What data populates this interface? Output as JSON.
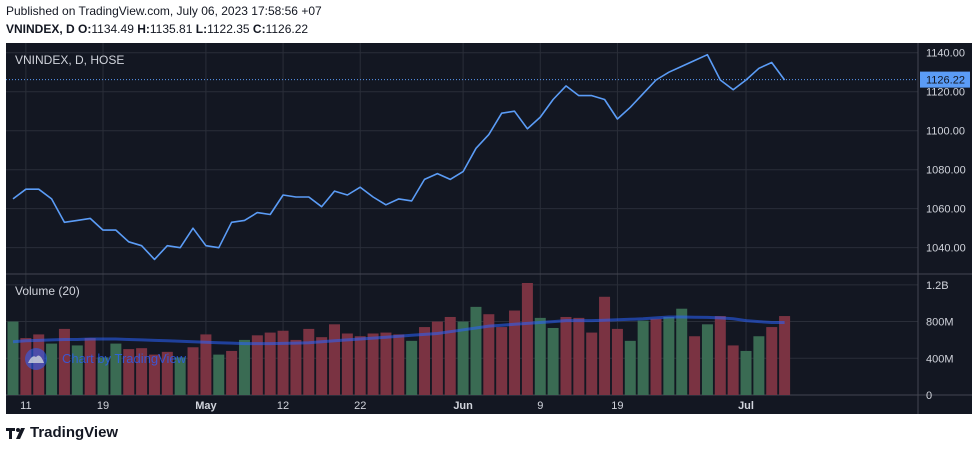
{
  "published": "Published on TradingView.com, July 06, 2023 17:58:56 +07",
  "ohlc": {
    "symbol_line": "VNINDEX, D",
    "o_label": "O:",
    "o": "1134.49",
    "h_label": "H:",
    "h": "1135.81",
    "l_label": "L:",
    "l": "1122.35",
    "c_label": "C:",
    "c": "1126.22"
  },
  "watermark": "Chart by TradingView",
  "footer_brand": "TradingView",
  "colors": {
    "background": "#131722",
    "grid": "#2a2e39",
    "line": "#5b9cf6",
    "volume_up": "#3a6b53",
    "volume_down": "#7a3342",
    "volume_ma": "#2962ff",
    "last_price_bg": "#5b9cf6"
  },
  "chart_data": [
    {
      "type": "line",
      "title": "VNINDEX, D, HOSE",
      "last_price_label": "1126.22",
      "ylim": [
        1027,
        1145
      ],
      "y_ticks": [
        "1040.00",
        "1060.00",
        "1080.00",
        "1100.00",
        "1120.00",
        "1140.00"
      ],
      "y_tick_values": [
        1040,
        1060,
        1080,
        1100,
        1120,
        1140
      ],
      "x_ticks": [
        {
          "label": "11",
          "i": 1
        },
        {
          "label": "19",
          "i": 7
        },
        {
          "label": "May",
          "i": 15
        },
        {
          "label": "12",
          "i": 21
        },
        {
          "label": "22",
          "i": 27
        },
        {
          "label": "Jun",
          "i": 35
        },
        {
          "label": "9",
          "i": 41
        },
        {
          "label": "19",
          "i": 47
        },
        {
          "label": "Jul",
          "i": 57
        }
      ],
      "series": [
        {
          "values": [
            1065,
            1070,
            1070,
            1065,
            1053,
            1054,
            1055,
            1049,
            1049,
            1043,
            1041,
            1034,
            1041,
            1040,
            1050,
            1041,
            1040,
            1053,
            1054,
            1058,
            1057,
            1067,
            1066,
            1066,
            1061,
            1069,
            1067,
            1071,
            1066,
            1062,
            1065,
            1064,
            1075,
            1078,
            1075,
            1079,
            1091,
            1098,
            1109,
            1110,
            1101,
            1107,
            1116,
            1123,
            1118,
            1118,
            1116,
            1106,
            1112,
            1119,
            1126,
            1130,
            1133,
            1136,
            1139,
            1126,
            1121,
            1126,
            1132,
            1135,
            1126
          ]
        }
      ]
    },
    {
      "type": "bar",
      "title": "Volume (20)",
      "unit": "M",
      "ylim": [
        0,
        1220
      ],
      "y_ticks": [
        "1.2B",
        "800M",
        "400M",
        "0"
      ],
      "y_tick_values": [
        1200,
        800,
        400,
        0
      ],
      "series": [
        {
          "name": "Volume",
          "values": [
            800,
            620,
            660,
            560,
            720,
            540,
            620,
            410,
            560,
            500,
            510,
            440,
            470,
            410,
            520,
            660,
            440,
            480,
            600,
            650,
            680,
            700,
            600,
            720,
            630,
            770,
            670,
            640,
            670,
            680,
            660,
            590,
            740,
            800,
            850,
            800,
            960,
            880,
            740,
            920,
            1220,
            840,
            730,
            850,
            840,
            680,
            1070,
            720,
            590,
            810,
            830,
            850,
            940,
            640,
            770,
            860,
            540,
            480,
            640,
            740,
            860
          ],
          "up": [
            true,
            false,
            false,
            true,
            false,
            true,
            false,
            true,
            true,
            false,
            false,
            false,
            false,
            true,
            false,
            false,
            true,
            false,
            true,
            false,
            false,
            false,
            false,
            false,
            false,
            false,
            false,
            false,
            false,
            false,
            false,
            true,
            false,
            false,
            false,
            true,
            true,
            false,
            false,
            false,
            false,
            true,
            true,
            false,
            false,
            false,
            false,
            false,
            true,
            true,
            false,
            true,
            true,
            false,
            true,
            false,
            false,
            true,
            true,
            false,
            false
          ]
        },
        {
          "name": "Volume MA",
          "values": [
            580,
            590,
            595,
            600,
            605,
            605,
            610,
            610,
            610,
            605,
            600,
            595,
            590,
            585,
            580,
            575,
            570,
            565,
            560,
            560,
            560,
            562,
            565,
            570,
            580,
            590,
            600,
            610,
            620,
            630,
            640,
            650,
            660,
            670,
            690,
            710,
            730,
            750,
            760,
            770,
            780,
            790,
            800,
            810,
            810,
            810,
            815,
            820,
            825,
            830,
            840,
            850,
            850,
            848,
            845,
            840,
            830,
            810,
            800,
            790,
            790
          ]
        }
      ]
    }
  ]
}
